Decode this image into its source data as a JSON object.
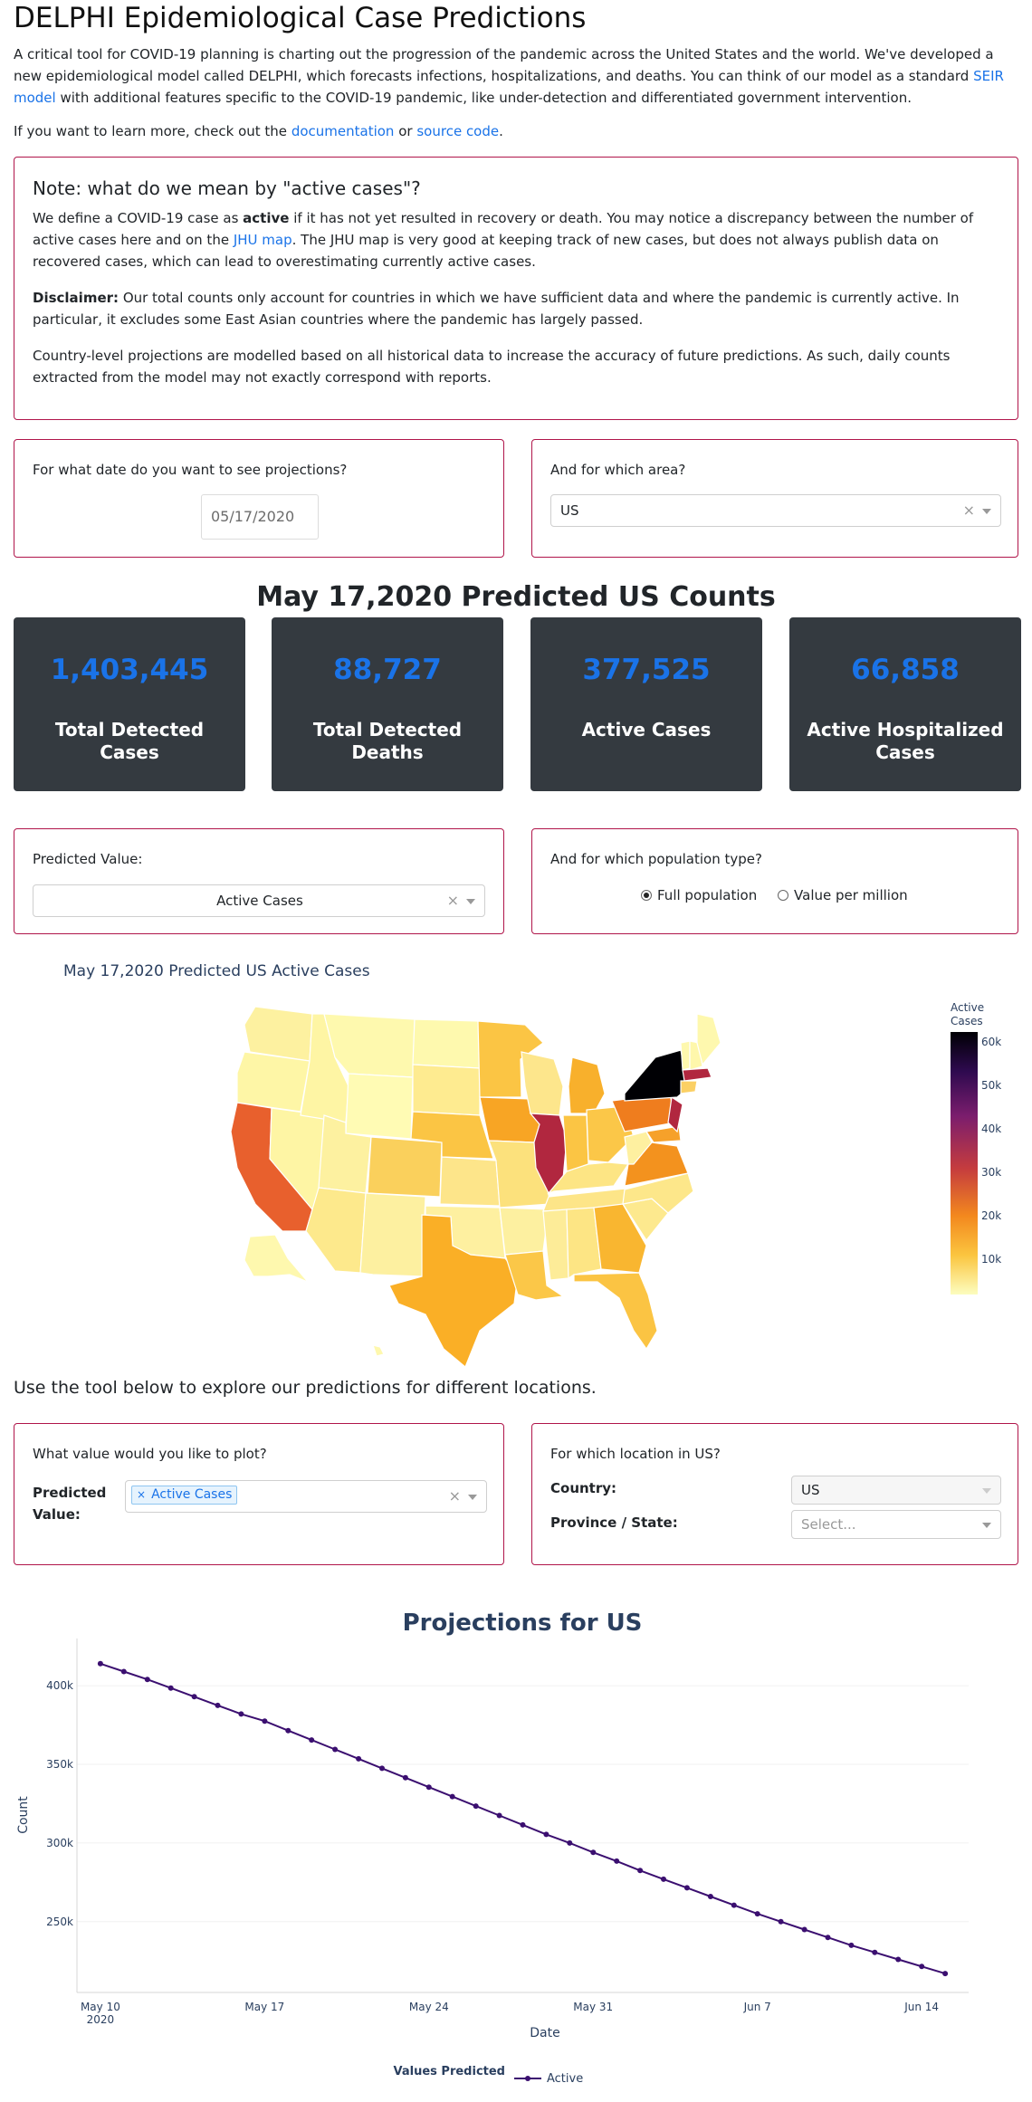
{
  "header": {
    "title": "DELPHI Epidemiological Case Predictions",
    "intro": "A critical tool for COVID-19 planning is charting out the progression of the pandemic across the United States and the world. We've developed a new epidemiological model called DELPHI, which forecasts infections, hospitalizations, and deaths. You can think of our model as a standard",
    "intro_link": "SEIR model",
    "intro_tail": "with additional features specific to the COVID-19 pandemic, like under-detection and differentiated government intervention.",
    "learn_prefix": "If you want to learn more, check out the",
    "learn_link_docs": "documentation",
    "learn_or": "or",
    "learn_link_source": "source code",
    "learn_end": "."
  },
  "note": {
    "title": "Note: what do we mean by \"active cases\"?",
    "p1_a": "We define a COVID-19 case as",
    "p1_bold": "active",
    "p1_b": "if it has not yet resulted in recovery or death. You may notice a discrepancy between the number of active cases here and on the",
    "p1_link": "JHU map",
    "p1_c": ". The JHU map is very good at keeping track of new cases, but does not always publish data on recovered cases, which can lead to overestimating currently active cases.",
    "p2_bold": "Disclaimer:",
    "p2": "Our total counts only account for countries in which we have sufficient data and where the pandemic is currently active. In particular, it excludes some East Asian countries where the pandemic has largely passed.",
    "p3": "Country-level projections are modelled based on all historical data to increase the accuracy of future predictions. As such, daily counts extracted from the model may not exactly correspond with reports."
  },
  "date_picker": {
    "label": "For what date do you want to see projections?",
    "value": "05/17/2020"
  },
  "area_picker": {
    "label": "And for which area?",
    "value": "US"
  },
  "counts_title": "May 17,2020 Predicted US Counts",
  "stats": [
    {
      "value": "1,403,445",
      "label": "Total Detected Cases"
    },
    {
      "value": "88,727",
      "label": "Total Detected Deaths"
    },
    {
      "value": "377,525",
      "label": "Active Cases"
    },
    {
      "value": "66,858",
      "label": "Active Hospitalized Cases"
    }
  ],
  "predicted_value": {
    "label": "Predicted Value:",
    "value": "Active Cases"
  },
  "population": {
    "label": "And for which population type?",
    "options": [
      "Full population",
      "Value per million"
    ],
    "selected": "Full population"
  },
  "map": {
    "title": "May 17,2020 Predicted US Active Cases",
    "colorbar_title_1": "Active",
    "colorbar_title_2": "Cases",
    "colorbar_ticks": [
      "60k",
      "50k",
      "40k",
      "30k",
      "20k",
      "10k"
    ]
  },
  "explore_text": "Use the tool below to explore our predictions for different locations.",
  "plot_value": {
    "label": "What value would you like to plot?",
    "field_label": "Predicted Value:",
    "chip": "Active Cases"
  },
  "location": {
    "label": "For which location in US?",
    "country_label": "Country:",
    "country_value": "US",
    "state_label": "Province / State:",
    "state_placeholder": "Select..."
  },
  "chart_data": {
    "type": "line",
    "title": "Projections for US",
    "xlabel": "Date",
    "ylabel": "Count",
    "x_tick_labels": [
      "May 10\n2020",
      "May 17",
      "May 24",
      "May 31",
      "Jun 7",
      "Jun 14"
    ],
    "y_tick_labels": [
      "250k",
      "300k",
      "350k",
      "400k"
    ],
    "ylim": [
      205000,
      430000
    ],
    "legend_title": "Values Predicted",
    "series": [
      {
        "name": "Active",
        "color": "#3b0f70",
        "x": [
          "2020-05-10",
          "2020-05-11",
          "2020-05-12",
          "2020-05-13",
          "2020-05-14",
          "2020-05-15",
          "2020-05-16",
          "2020-05-17",
          "2020-05-18",
          "2020-05-19",
          "2020-05-20",
          "2020-05-21",
          "2020-05-22",
          "2020-05-23",
          "2020-05-24",
          "2020-05-25",
          "2020-05-26",
          "2020-05-27",
          "2020-05-28",
          "2020-05-29",
          "2020-05-30",
          "2020-05-31",
          "2020-06-01",
          "2020-06-02",
          "2020-06-03",
          "2020-06-04",
          "2020-06-05",
          "2020-06-06",
          "2020-06-07",
          "2020-06-08",
          "2020-06-09",
          "2020-06-10",
          "2020-06-11",
          "2020-06-12",
          "2020-06-13",
          "2020-06-14",
          "2020-06-15"
        ],
        "values": [
          414000,
          409000,
          404000,
          398500,
          393000,
          387500,
          382000,
          377500,
          371500,
          365500,
          359500,
          353500,
          347500,
          341500,
          335500,
          329500,
          323500,
          317500,
          311500,
          305500,
          300000,
          294000,
          288500,
          282500,
          277000,
          271500,
          266000,
          260500,
          255000,
          250000,
          245000,
          240000,
          235000,
          230500,
          226000,
          221500,
          217000
        ]
      }
    ]
  }
}
